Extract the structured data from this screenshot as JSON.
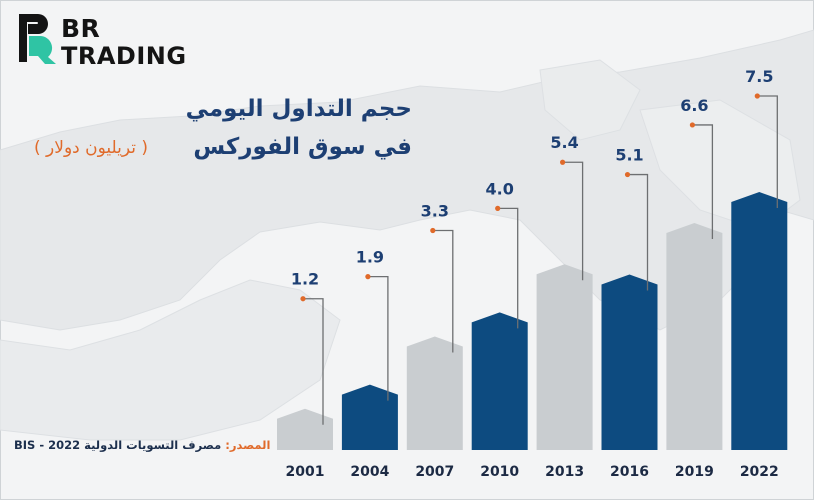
{
  "brand": {
    "line1": "BR",
    "line2": "TRADING",
    "icon": "br-logo-icon"
  },
  "title_line1": "حجم التداول اليومي",
  "title_line2": "في سوق الفوركس",
  "subtitle": "( تريليون دولار )",
  "source": {
    "label": "المصدر:",
    "text": "مصرف التسويات الدولية 2022 - BIS"
  },
  "colors": {
    "dark_bar": "#0d4b80",
    "light_bar": "#c9cdd0",
    "value_text": "#1d3f73",
    "leader": "#6d6f71",
    "dot": "#e06a2a",
    "accent": "#e06a2a"
  },
  "chart_data": {
    "type": "bar",
    "title": "حجم التداول اليومي في سوق الفوركس ( تريليون دولار )",
    "xlabel": "",
    "ylabel": "تريليون دولار",
    "categories": [
      "2001",
      "2004",
      "2007",
      "2010",
      "2013",
      "2016",
      "2019",
      "2022"
    ],
    "values": [
      1.2,
      1.9,
      3.3,
      4.0,
      5.4,
      5.1,
      6.6,
      7.5
    ],
    "value_labels": [
      "1.2",
      "1.9",
      "3.3",
      "4.0",
      "5.4",
      "5.1",
      "6.6",
      "7.5"
    ],
    "bar_styles": [
      "light",
      "dark",
      "light",
      "dark",
      "light",
      "dark",
      "light",
      "dark"
    ],
    "ylim": [
      0,
      7.5
    ]
  }
}
